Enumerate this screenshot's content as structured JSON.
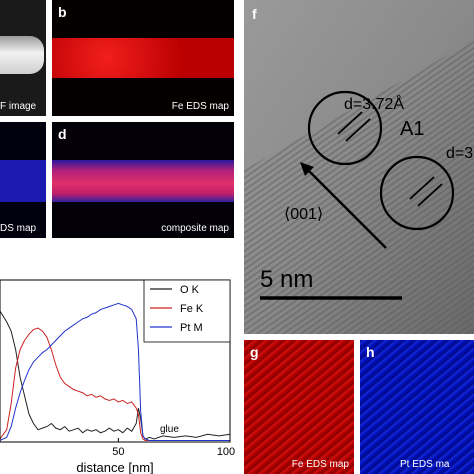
{
  "panels": {
    "a": {
      "caption": "F image"
    },
    "b": {
      "label": "b",
      "caption": "Fe EDS map"
    },
    "c": {
      "caption": "DS map"
    },
    "d": {
      "label": "d",
      "caption": "composite map"
    },
    "f": {
      "label": "f",
      "d_spacing_1": "d=3.72Å",
      "region_1": "A1",
      "d_spacing_2": "d=3",
      "direction": "⟨001⟩",
      "scalebar": "5 nm"
    },
    "g": {
      "label": "g",
      "caption": "Fe EDS map"
    },
    "h": {
      "label": "h",
      "caption": "Pt EDS ma"
    }
  },
  "chart_data": {
    "type": "line",
    "xlabel": "distance [nm]",
    "ylabel": "",
    "xlim": [
      -3,
      100
    ],
    "ylim": [
      0,
      1
    ],
    "x_ticks": [
      50,
      100
    ],
    "x_tick_labels": [
      "50",
      "100"
    ],
    "legend_position": "top-right",
    "annotation": "glue",
    "series": [
      {
        "name": "O K",
        "color": "#222222",
        "x": [
          -3,
          0,
          2,
          4,
          6,
          8,
          10,
          12,
          14,
          16,
          18,
          20,
          22,
          24,
          26,
          28,
          30,
          32,
          34,
          36,
          38,
          40,
          42,
          44,
          46,
          48,
          50,
          52,
          54,
          56,
          58,
          59,
          60,
          61,
          62,
          64,
          66,
          70,
          75,
          80,
          85,
          90,
          95,
          100
        ],
        "y": [
          0.85,
          0.78,
          0.72,
          0.6,
          0.42,
          0.3,
          0.18,
          0.12,
          0.08,
          0.09,
          0.1,
          0.12,
          0.09,
          0.08,
          0.1,
          0.07,
          0.08,
          0.09,
          0.06,
          0.08,
          0.07,
          0.08,
          0.06,
          0.07,
          0.09,
          0.07,
          0.08,
          0.06,
          0.09,
          0.07,
          0.12,
          0.22,
          0.15,
          0.04,
          0.02,
          0.03,
          0.02,
          0.04,
          0.03,
          0.04,
          0.03,
          0.05,
          0.04,
          0.05
        ]
      },
      {
        "name": "Fe K",
        "color": "#cc2222",
        "x": [
          -3,
          0,
          2,
          4,
          6,
          8,
          10,
          12,
          14,
          16,
          18,
          20,
          22,
          24,
          26,
          28,
          30,
          32,
          34,
          36,
          38,
          40,
          42,
          44,
          46,
          48,
          50,
          52,
          54,
          56,
          58,
          59,
          60,
          61,
          62,
          64,
          66,
          70,
          75,
          80,
          85,
          90,
          95,
          100
        ],
        "y": [
          0.02,
          0.08,
          0.25,
          0.48,
          0.6,
          0.66,
          0.7,
          0.73,
          0.74,
          0.72,
          0.68,
          0.6,
          0.5,
          0.42,
          0.38,
          0.36,
          0.34,
          0.33,
          0.32,
          0.3,
          0.31,
          0.29,
          0.3,
          0.28,
          0.27,
          0.28,
          0.26,
          0.27,
          0.25,
          0.26,
          0.22,
          0.18,
          0.06,
          0.02,
          0.01,
          0.01,
          0.01,
          0.01,
          0.01,
          0.01,
          0.01,
          0.01,
          0.01,
          0.01
        ]
      },
      {
        "name": "Pt M",
        "color": "#2233cc",
        "x": [
          -3,
          0,
          2,
          4,
          6,
          8,
          10,
          12,
          14,
          16,
          18,
          20,
          22,
          24,
          26,
          28,
          30,
          32,
          34,
          36,
          38,
          40,
          42,
          44,
          46,
          48,
          50,
          52,
          54,
          56,
          58,
          59,
          60,
          61,
          62,
          64,
          66,
          70,
          75,
          80,
          85,
          90,
          95,
          100
        ],
        "y": [
          0.01,
          0.03,
          0.1,
          0.22,
          0.32,
          0.4,
          0.47,
          0.52,
          0.55,
          0.58,
          0.6,
          0.63,
          0.66,
          0.69,
          0.72,
          0.74,
          0.76,
          0.78,
          0.8,
          0.81,
          0.83,
          0.84,
          0.86,
          0.87,
          0.88,
          0.89,
          0.9,
          0.89,
          0.88,
          0.86,
          0.8,
          0.6,
          0.2,
          0.04,
          0.02,
          0.01,
          0.01,
          0.01,
          0.01,
          0.01,
          0.01,
          0.01,
          0.01,
          0.01
        ]
      }
    ]
  }
}
